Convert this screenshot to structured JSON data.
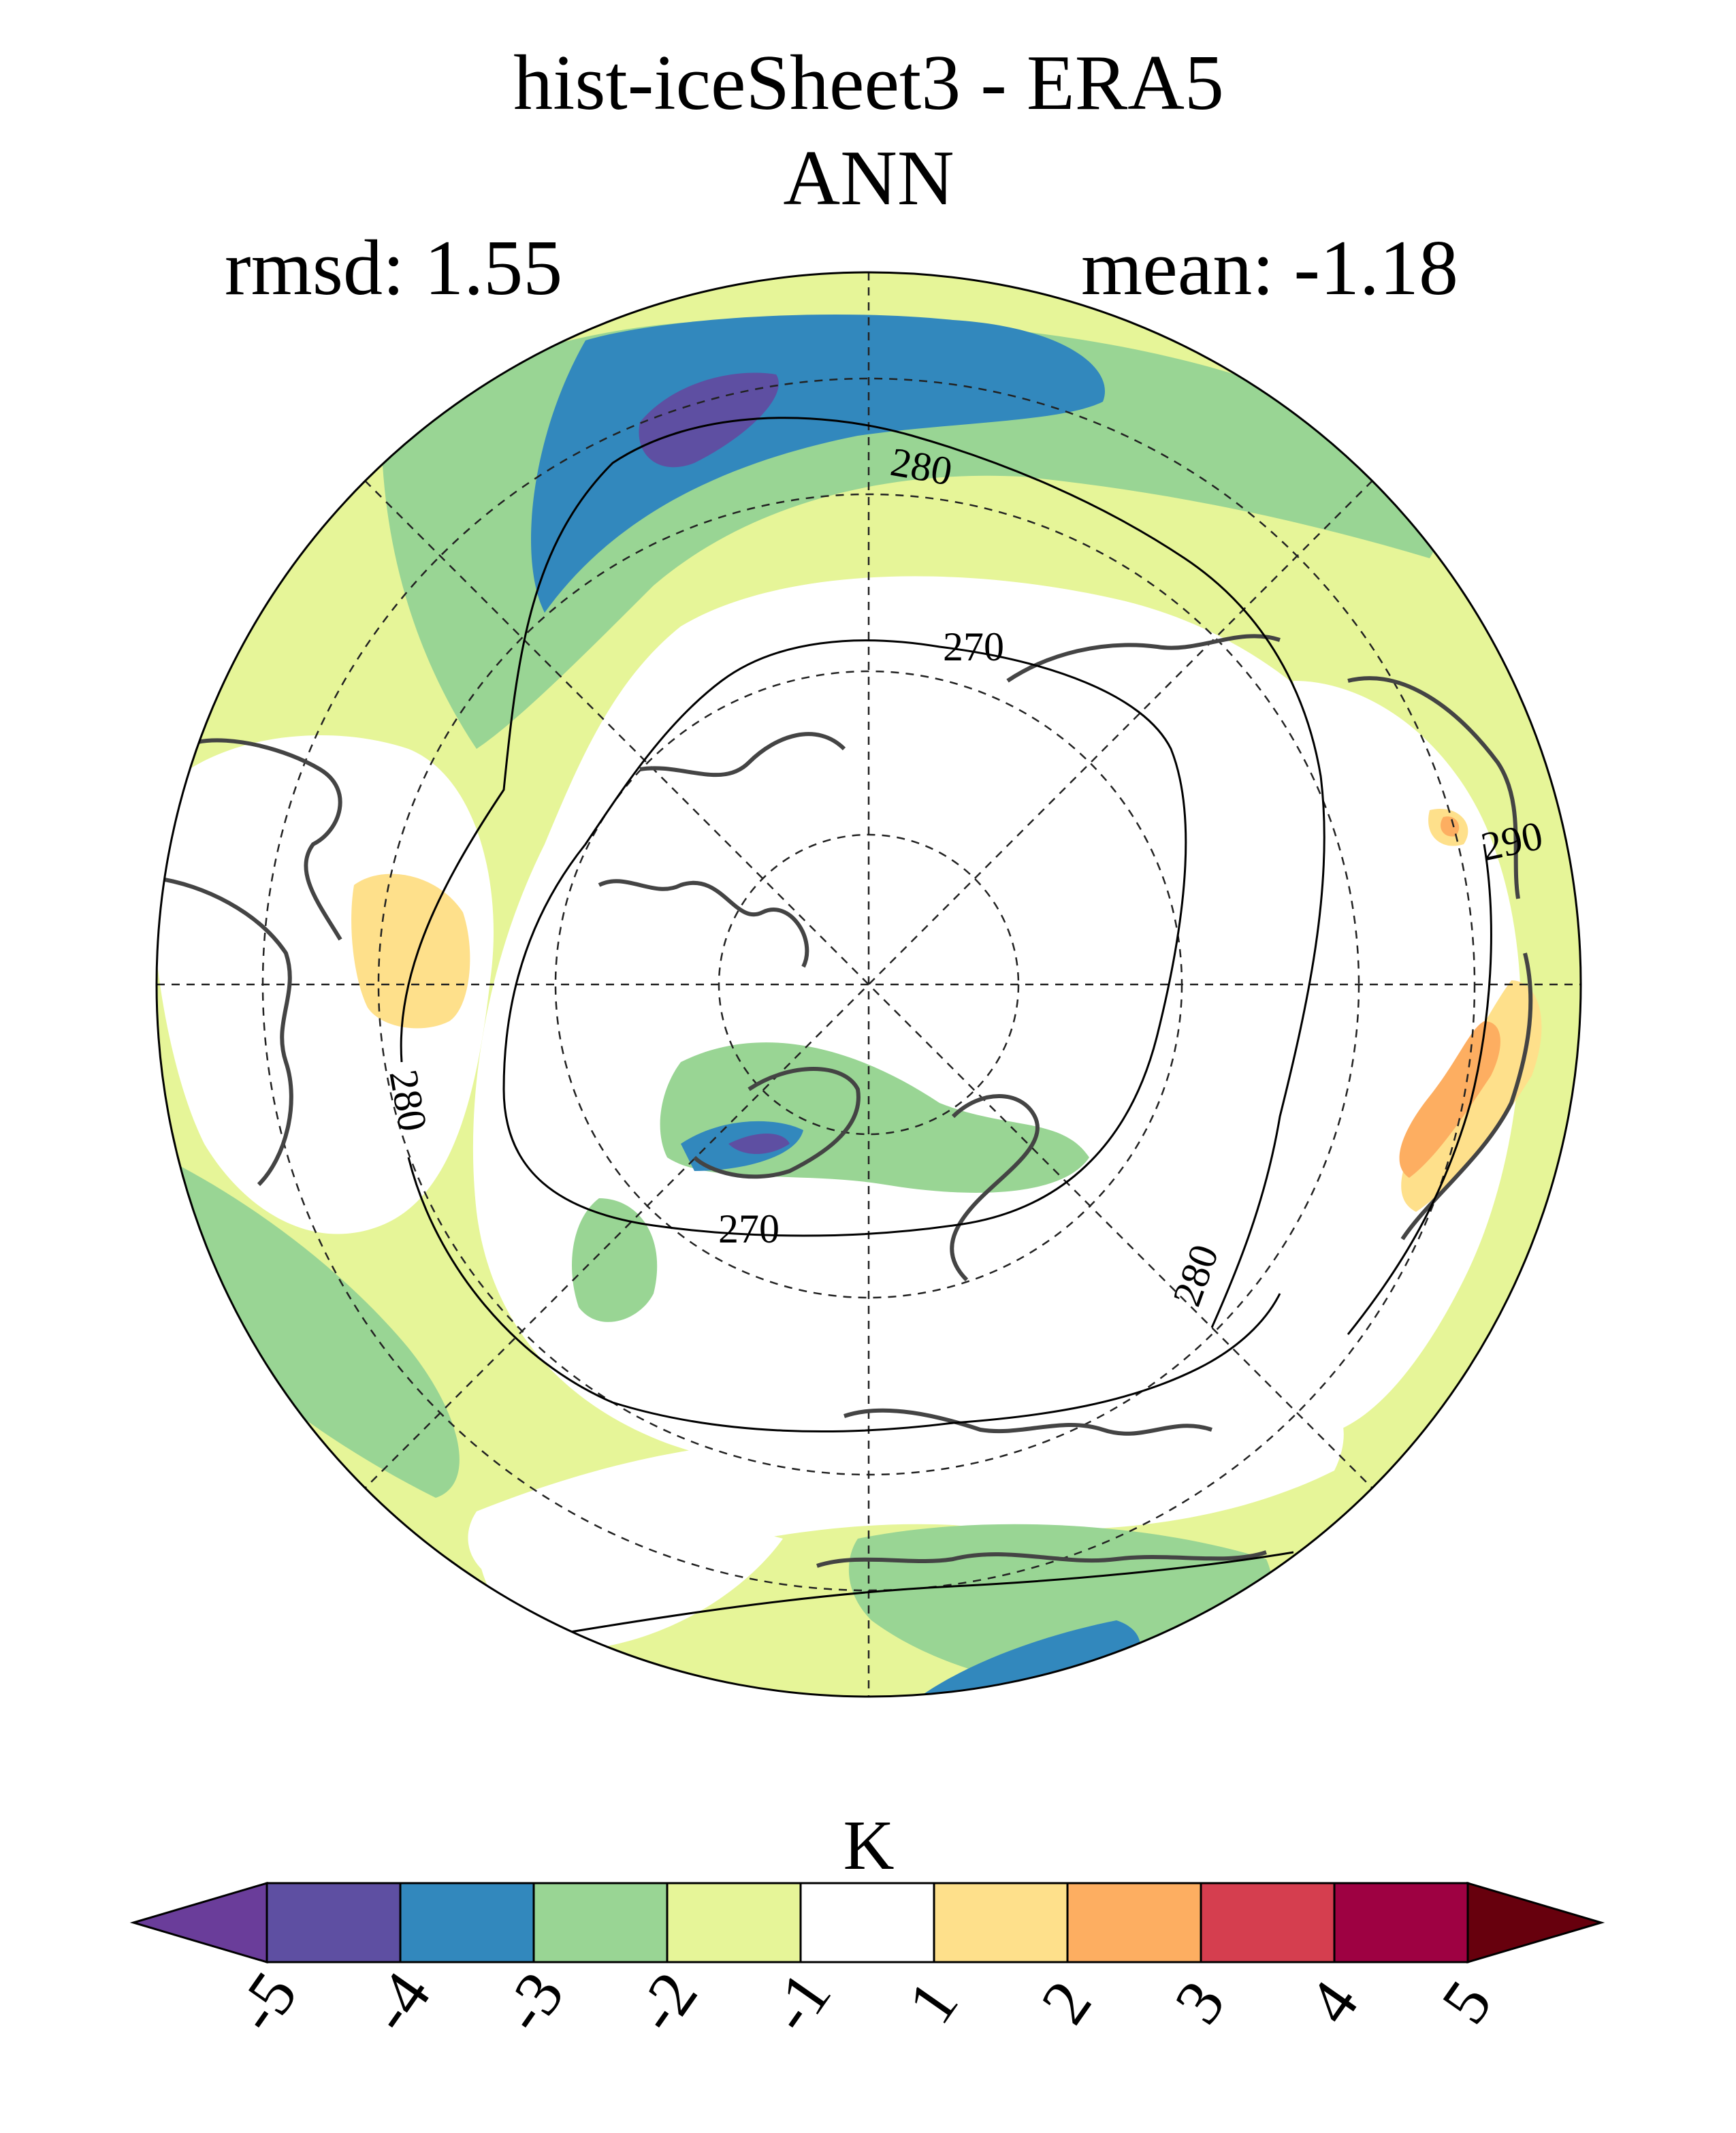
{
  "title": {
    "line1": "hist-iceSheet3 - ERA5",
    "line2": "ANN",
    "rmsd": "rmsd: 1.55",
    "mean": "mean: -1.18"
  },
  "map": {
    "projection": "north-polar-stereographic",
    "variable_unit": "K",
    "contour_labels": [
      "280",
      "270",
      "290",
      "280",
      "270",
      "280"
    ],
    "colors": {
      "lt_neg5": "#6a3d9a",
      "neg5_neg4": "#5e4fa2",
      "neg4_neg3": "#3288bd",
      "neg3_neg2": "#99d594",
      "neg2_neg1": "#e6f598",
      "neg1_1": "#ffffff",
      "p1_2": "#fee08b",
      "p2_3": "#fdae61",
      "p3_4": "#d53e4f",
      "p4_5": "#9e0142",
      "gt_5": "#67000d",
      "coastline": "#444444",
      "grid": "#222222"
    }
  },
  "colorbar": {
    "label": "K",
    "ticks": [
      "-5",
      "-4",
      "-3",
      "-2",
      "-1",
      "1",
      "2",
      "3",
      "4",
      "5"
    ],
    "bins": [
      {
        "range": "<-5",
        "color": "#6a3d9a"
      },
      {
        "range": "-5..-4",
        "color": "#5e4fa2"
      },
      {
        "range": "-4..-3",
        "color": "#3288bd"
      },
      {
        "range": "-3..-2",
        "color": "#99d594"
      },
      {
        "range": "-2..-1",
        "color": "#e6f598"
      },
      {
        "range": "-1..1",
        "color": "#ffffff"
      },
      {
        "range": "1..2",
        "color": "#fee08b"
      },
      {
        "range": "2..3",
        "color": "#fdae61"
      },
      {
        "range": "3..4",
        "color": "#d53e4f"
      },
      {
        "range": "4..5",
        "color": "#9e0142"
      },
      {
        "range": ">5",
        "color": "#67000d"
      }
    ]
  }
}
